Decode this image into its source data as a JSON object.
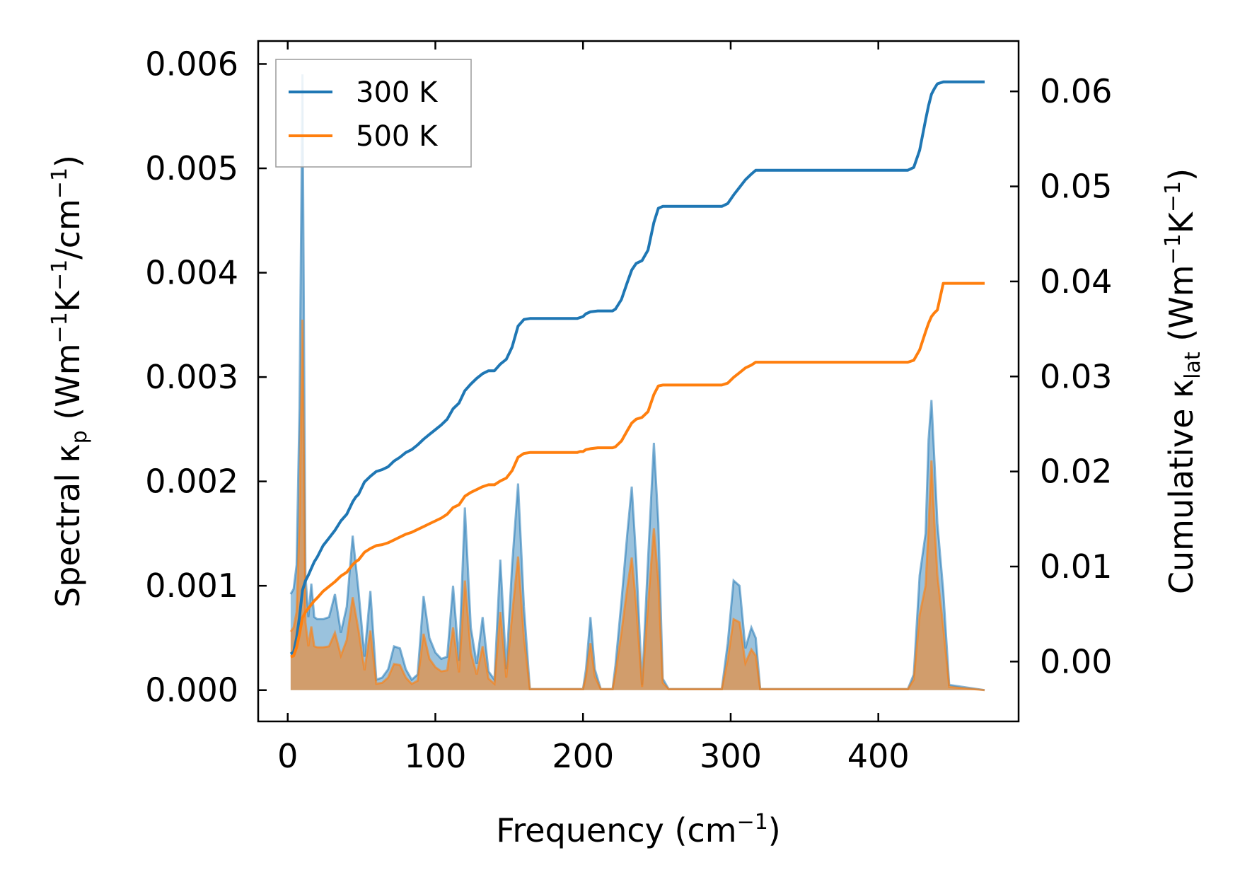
{
  "chart_data": {
    "type": "line",
    "xlabel": "Frequency (cm",
    "xlabel_sup": "−1",
    "xlabel_tail": ")",
    "ylabel_left": {
      "pre": "Spectral κ",
      "sub": "p",
      "mid1": " (Wm",
      "sup1": "−1",
      "mid2": "K",
      "sup2": "−1",
      "mid3": "/cm",
      "sup3": "−1",
      "tail": ")"
    },
    "ylabel_right": {
      "pre": "Cumulative κ",
      "sub": "lat",
      "mid1": " (Wm",
      "sup1": "−1",
      "mid2": "K",
      "sup2": "−1",
      "tail": ")"
    },
    "xlim": [
      -20,
      495
    ],
    "ylim_left": [
      -0.0003,
      0.00622
    ],
    "ylim_right": [
      -0.0063,
      0.0653
    ],
    "xticks": [
      0,
      100,
      200,
      300,
      400
    ],
    "xtick_labels": [
      "0",
      "100",
      "200",
      "300",
      "400"
    ],
    "yticks_left": [
      0,
      0.001,
      0.002,
      0.003,
      0.004,
      0.005,
      0.006
    ],
    "ytick_labels_left": [
      "0.000",
      "0.001",
      "0.002",
      "0.003",
      "0.004",
      "0.005",
      "0.006"
    ],
    "yticks_right": [
      0,
      0.01,
      0.02,
      0.03,
      0.04,
      0.05,
      0.06
    ],
    "ytick_labels_right": [
      "0.00",
      "0.01",
      "0.02",
      "0.03",
      "0.04",
      "0.05",
      "0.06"
    ],
    "legend_position": "top-left",
    "series": [
      {
        "name": "300 K",
        "color": "#1f77b4",
        "spectral_x": [
          2,
          4,
          6,
          8,
          10,
          12,
          14,
          16,
          18,
          20,
          24,
          28,
          32,
          36,
          40,
          44,
          48,
          52,
          56,
          60,
          64,
          68,
          72,
          76,
          80,
          84,
          88,
          92,
          96,
          100,
          104,
          108,
          112,
          116,
          120,
          124,
          128,
          132,
          136,
          140,
          144,
          148,
          152,
          156,
          160,
          164,
          200,
          202,
          205,
          208,
          212,
          220,
          222,
          226,
          230,
          233,
          236,
          240,
          244,
          248,
          251,
          254,
          258,
          294,
          298,
          302,
          306,
          310,
          314,
          317,
          320,
          420,
          424,
          428,
          432,
          434,
          436,
          438,
          440,
          444,
          448,
          472
        ],
        "spectral_y": [
          0.00092,
          0.00097,
          0.0012,
          0.0027,
          0.0059,
          0.0011,
          0.0007,
          0.00102,
          0.0007,
          0.00068,
          0.00068,
          0.0007,
          0.00092,
          0.00055,
          0.0008,
          0.00148,
          0.00095,
          0.00032,
          0.00095,
          0.0001,
          0.00012,
          0.0002,
          0.00042,
          0.0004,
          0.0002,
          0.0001,
          0.00015,
          0.0009,
          0.0005,
          0.00036,
          0.0003,
          0.00032,
          0.001,
          0.00028,
          0.00175,
          0.0006,
          0.00025,
          0.0007,
          0.00018,
          0.0001,
          0.00125,
          0.0002,
          0.0012,
          0.00198,
          0.0008,
          1e-05,
          1e-05,
          0.0002,
          0.0007,
          0.0002,
          1e-05,
          1e-05,
          0.00024,
          0.00085,
          0.0015,
          0.00195,
          0.00125,
          5e-05,
          0.00125,
          0.00237,
          0.0016,
          0.00011,
          1e-05,
          1e-05,
          0.00045,
          0.00105,
          0.001,
          0.0004,
          0.0006,
          0.0005,
          1e-05,
          1e-05,
          0.00015,
          0.0011,
          0.0015,
          0.0024,
          0.00278,
          0.0022,
          0.0016,
          0.00095,
          5e-05,
          0
        ],
        "cumulative_x": [
          2,
          4,
          6,
          8,
          10,
          12,
          14,
          16,
          18,
          20,
          24,
          28,
          32,
          36,
          40,
          44,
          46,
          48,
          52,
          56,
          60,
          64,
          68,
          72,
          76,
          80,
          84,
          88,
          92,
          96,
          100,
          104,
          108,
          112,
          116,
          120,
          124,
          128,
          132,
          136,
          140,
          144,
          148,
          152,
          156,
          160,
          164,
          196,
          198,
          200,
          202,
          205,
          210,
          220,
          222,
          226,
          230,
          233,
          236,
          240,
          244,
          248,
          251,
          254,
          258,
          294,
          298,
          302,
          306,
          310,
          314,
          317,
          320,
          420,
          424,
          428,
          432,
          434,
          436,
          438,
          440,
          444,
          448,
          472
        ],
        "cumulative_y": [
          0.0008,
          0.001,
          0.0025,
          0.0047,
          0.0075,
          0.0085,
          0.0091,
          0.0098,
          0.0105,
          0.011,
          0.0122,
          0.013,
          0.0138,
          0.0148,
          0.0155,
          0.0168,
          0.0173,
          0.0176,
          0.0189,
          0.0195,
          0.02,
          0.0202,
          0.0205,
          0.0211,
          0.0215,
          0.022,
          0.0223,
          0.0228,
          0.0234,
          0.0239,
          0.0244,
          0.0249,
          0.0255,
          0.0266,
          0.0272,
          0.0285,
          0.0292,
          0.0298,
          0.0303,
          0.0306,
          0.0306,
          0.0313,
          0.0318,
          0.0331,
          0.0353,
          0.036,
          0.0361,
          0.0361,
          0.0362,
          0.0363,
          0.0366,
          0.0368,
          0.0369,
          0.0369,
          0.0371,
          0.0381,
          0.0399,
          0.0412,
          0.0419,
          0.0422,
          0.0433,
          0.0462,
          0.0477,
          0.0479,
          0.0479,
          0.0479,
          0.0482,
          0.0491,
          0.0499,
          0.0507,
          0.0513,
          0.0517,
          0.0517,
          0.0517,
          0.052,
          0.0538,
          0.057,
          0.0585,
          0.0597,
          0.0603,
          0.0608,
          0.061,
          0.061,
          0.061
        ]
      },
      {
        "name": "500 K",
        "color": "#ff7f0e",
        "spectral_x": [
          2,
          4,
          6,
          8,
          10,
          12,
          14,
          16,
          18,
          20,
          24,
          28,
          32,
          36,
          40,
          44,
          48,
          52,
          56,
          60,
          64,
          68,
          72,
          76,
          80,
          84,
          88,
          92,
          96,
          100,
          104,
          108,
          112,
          116,
          120,
          124,
          128,
          132,
          136,
          140,
          144,
          148,
          152,
          156,
          160,
          164,
          200,
          202,
          205,
          208,
          212,
          220,
          222,
          226,
          230,
          233,
          236,
          240,
          244,
          248,
          251,
          254,
          258,
          294,
          298,
          302,
          306,
          310,
          314,
          317,
          320,
          420,
          424,
          428,
          432,
          434,
          436,
          438,
          440,
          444,
          448,
          472
        ],
        "spectral_y": [
          0.00056,
          0.0006,
          0.00075,
          0.0016,
          0.00355,
          0.00065,
          0.00042,
          0.00061,
          0.00042,
          0.00041,
          0.00041,
          0.00042,
          0.00055,
          0.00033,
          0.00048,
          0.00089,
          0.00057,
          0.00019,
          0.00057,
          6e-05,
          7e-05,
          0.00012,
          0.00025,
          0.00024,
          0.00012,
          6e-05,
          9e-05,
          0.00054,
          0.0003,
          0.00022,
          0.00018,
          0.00019,
          0.0006,
          0.00017,
          0.00105,
          0.00036,
          0.00015,
          0.00042,
          0.00011,
          6e-05,
          0.00075,
          0.00012,
          0.00072,
          0.00128,
          0.0005,
          1e-05,
          1e-05,
          0.00013,
          0.00045,
          0.00013,
          1e-05,
          1e-05,
          0.00016,
          0.00055,
          0.00098,
          0.00127,
          0.00081,
          3e-05,
          0.00081,
          0.00155,
          0.00104,
          7e-05,
          1e-05,
          1e-05,
          0.00029,
          0.00068,
          0.00065,
          0.00026,
          0.00039,
          0.00033,
          1e-05,
          1e-05,
          0.0001,
          0.00072,
          0.001,
          0.00155,
          0.0022,
          0.0016,
          0.0011,
          0.0006,
          3e-05,
          0
        ],
        "cumulative_x": [
          2,
          4,
          6,
          8,
          10,
          12,
          14,
          16,
          18,
          20,
          24,
          28,
          32,
          36,
          40,
          44,
          46,
          48,
          52,
          56,
          60,
          64,
          68,
          72,
          76,
          80,
          84,
          88,
          92,
          96,
          100,
          104,
          108,
          112,
          116,
          120,
          124,
          128,
          132,
          136,
          140,
          144,
          148,
          152,
          156,
          160,
          164,
          196,
          198,
          200,
          202,
          205,
          210,
          220,
          222,
          226,
          230,
          233,
          236,
          240,
          244,
          248,
          251,
          254,
          258,
          294,
          298,
          302,
          306,
          310,
          314,
          317,
          320,
          420,
          424,
          428,
          432,
          434,
          436,
          438,
          440,
          444,
          448,
          472
        ],
        "cumulative_y": [
          0.0005,
          0.0006,
          0.0015,
          0.0029,
          0.0046,
          0.0052,
          0.0056,
          0.006,
          0.0064,
          0.0067,
          0.0074,
          0.0079,
          0.0084,
          0.009,
          0.0094,
          0.0102,
          0.0105,
          0.0107,
          0.0115,
          0.0119,
          0.0122,
          0.0123,
          0.0125,
          0.0128,
          0.0131,
          0.0134,
          0.0136,
          0.0139,
          0.0142,
          0.0145,
          0.0148,
          0.0151,
          0.0155,
          0.0162,
          0.0165,
          0.0174,
          0.0178,
          0.0181,
          0.0184,
          0.0186,
          0.0186,
          0.019,
          0.0193,
          0.0201,
          0.0215,
          0.0219,
          0.022,
          0.022,
          0.0221,
          0.0221,
          0.0223,
          0.0224,
          0.0225,
          0.0225,
          0.0226,
          0.0232,
          0.0243,
          0.0251,
          0.0255,
          0.0257,
          0.0263,
          0.0281,
          0.029,
          0.0291,
          0.0291,
          0.0291,
          0.0293,
          0.0299,
          0.0304,
          0.0309,
          0.0312,
          0.0315,
          0.0315,
          0.0315,
          0.0317,
          0.0328,
          0.0347,
          0.0356,
          0.0363,
          0.0367,
          0.037,
          0.0398,
          0.0398,
          0.0398
        ]
      }
    ]
  }
}
